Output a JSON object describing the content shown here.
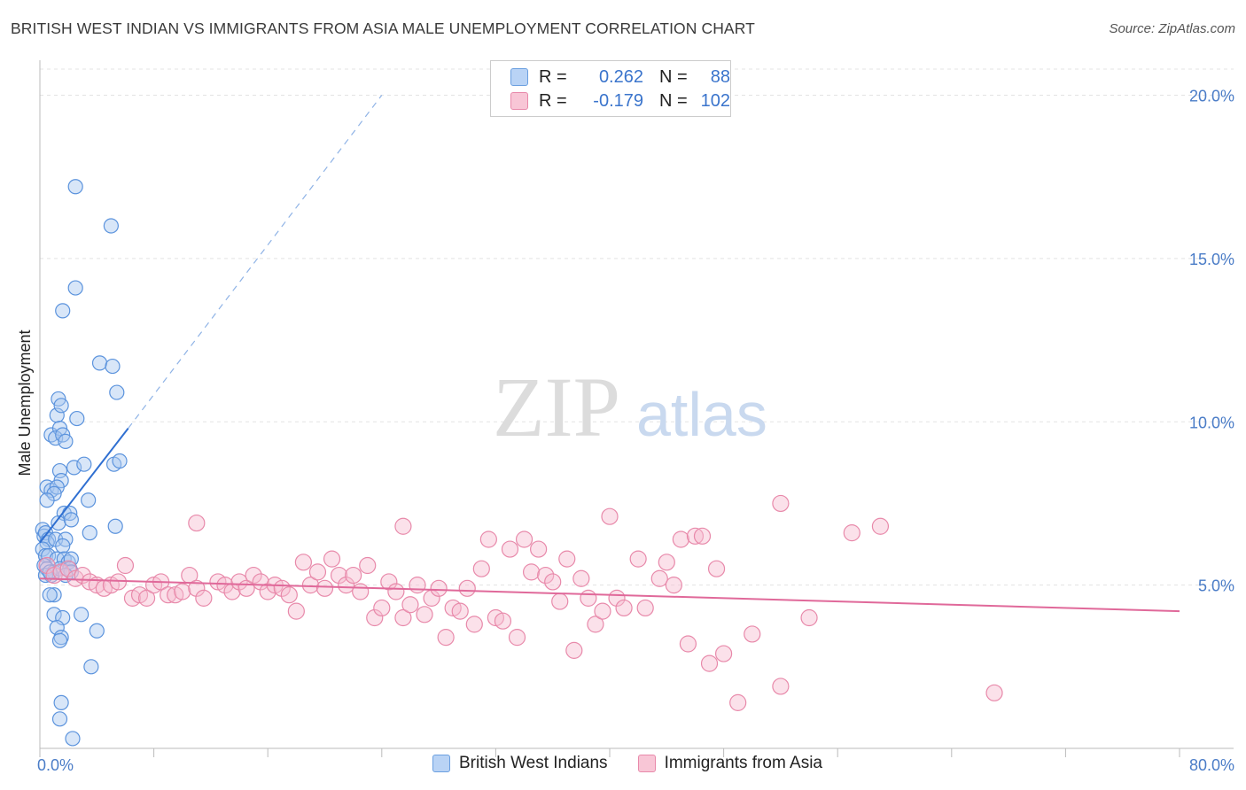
{
  "title": "BRITISH WEST INDIAN VS IMMIGRANTS FROM ASIA MALE UNEMPLOYMENT CORRELATION CHART",
  "source": "Source: ZipAtlas.com",
  "watermark": {
    "zip": "ZIP",
    "atlas": "atlas"
  },
  "legend": {
    "r_label": "R =",
    "n_label": "N =",
    "rows": [
      {
        "r": "0.262",
        "n": "88",
        "color": "#6a9fe0",
        "fill": "#b9d3f5"
      },
      {
        "r": "-0.179",
        "n": "102",
        "color": "#e889aa",
        "fill": "#f8c6d6"
      }
    ]
  },
  "chart_data": {
    "type": "scatter",
    "title": "BRITISH WEST INDIAN VS IMMIGRANTS FROM ASIA MALE UNEMPLOYMENT CORRELATION CHART",
    "xlabel": "",
    "ylabel": "Male Unemployment",
    "xlim": [
      0,
      80
    ],
    "ylim": [
      0,
      20.8
    ],
    "x_tick_labels": [
      "0.0%",
      "80.0%"
    ],
    "y_ticks": [
      5,
      10,
      15,
      20
    ],
    "y_tick_labels": [
      "5.0%",
      "10.0%",
      "15.0%",
      "20.0%"
    ],
    "grid": true,
    "series": [
      {
        "name": "British West Indians",
        "color": "#5b93dd",
        "fill": "#a9c8f0",
        "trend": {
          "x0": 0,
          "y0": 6.3,
          "x1": 6.2,
          "y1": 9.8,
          "dash_x1": 24,
          "dash_y1": 20
        },
        "points": [
          [
            2.5,
            17.2
          ],
          [
            5.0,
            16.0
          ],
          [
            2.5,
            14.1
          ],
          [
            1.6,
            13.4
          ],
          [
            4.2,
            11.8
          ],
          [
            5.1,
            11.7
          ],
          [
            5.4,
            10.9
          ],
          [
            1.3,
            10.7
          ],
          [
            1.2,
            10.2
          ],
          [
            1.5,
            10.5
          ],
          [
            2.6,
            10.1
          ],
          [
            0.8,
            9.6
          ],
          [
            1.4,
            9.8
          ],
          [
            1.1,
            9.5
          ],
          [
            1.6,
            9.6
          ],
          [
            1.8,
            9.4
          ],
          [
            2.4,
            8.6
          ],
          [
            3.1,
            8.7
          ],
          [
            5.2,
            8.7
          ],
          [
            5.6,
            8.8
          ],
          [
            1.4,
            8.5
          ],
          [
            1.5,
            8.2
          ],
          [
            0.5,
            8.0
          ],
          [
            0.8,
            7.9
          ],
          [
            1.2,
            8.0
          ],
          [
            1.0,
            7.8
          ],
          [
            0.5,
            7.6
          ],
          [
            3.4,
            7.6
          ],
          [
            1.7,
            7.2
          ],
          [
            2.1,
            7.2
          ],
          [
            1.3,
            6.9
          ],
          [
            2.2,
            7.0
          ],
          [
            0.2,
            6.7
          ],
          [
            0.3,
            6.5
          ],
          [
            0.4,
            6.6
          ],
          [
            0.6,
            6.4
          ],
          [
            0.5,
            6.3
          ],
          [
            1.1,
            6.4
          ],
          [
            1.8,
            6.4
          ],
          [
            1.6,
            6.2
          ],
          [
            3.5,
            6.6
          ],
          [
            5.3,
            6.8
          ],
          [
            0.2,
            6.1
          ],
          [
            0.4,
            5.9
          ],
          [
            0.6,
            5.9
          ],
          [
            1.2,
            5.8
          ],
          [
            1.7,
            5.8
          ],
          [
            2.0,
            5.7
          ],
          [
            2.2,
            5.8
          ],
          [
            0.3,
            5.6
          ],
          [
            0.5,
            5.5
          ],
          [
            0.8,
            5.3
          ],
          [
            1.0,
            5.4
          ],
          [
            1.4,
            5.5
          ],
          [
            2.1,
            5.5
          ],
          [
            2.2,
            5.4
          ],
          [
            0.4,
            5.3
          ],
          [
            0.7,
            5.4
          ],
          [
            1.8,
            5.3
          ],
          [
            1.0,
            4.7
          ],
          [
            0.7,
            4.7
          ],
          [
            1.0,
            4.1
          ],
          [
            1.6,
            4.0
          ],
          [
            2.9,
            4.1
          ],
          [
            1.2,
            3.7
          ],
          [
            4.0,
            3.6
          ],
          [
            1.5,
            3.4
          ],
          [
            1.4,
            3.3
          ],
          [
            3.6,
            2.5
          ],
          [
            1.5,
            1.4
          ],
          [
            1.4,
            0.9
          ],
          [
            2.3,
            0.3
          ]
        ]
      },
      {
        "name": "Immigrants from Asia",
        "color": "#e889aa",
        "fill": "#f6bcd0",
        "trend": {
          "x0": 0,
          "y0": 5.2,
          "x1": 80,
          "y1": 4.2
        },
        "points": [
          [
            0.5,
            5.6
          ],
          [
            1.0,
            5.3
          ],
          [
            1.5,
            5.4
          ],
          [
            2.0,
            5.5
          ],
          [
            2.5,
            5.2
          ],
          [
            3.0,
            5.3
          ],
          [
            3.5,
            5.1
          ],
          [
            4.0,
            5.0
          ],
          [
            4.5,
            4.9
          ],
          [
            5.0,
            5.0
          ],
          [
            5.5,
            5.1
          ],
          [
            6.0,
            5.6
          ],
          [
            6.5,
            4.6
          ],
          [
            7.0,
            4.7
          ],
          [
            7.5,
            4.6
          ],
          [
            8.0,
            5.0
          ],
          [
            8.5,
            5.1
          ],
          [
            9.0,
            4.7
          ],
          [
            9.5,
            4.7
          ],
          [
            10.0,
            4.8
          ],
          [
            10.5,
            5.3
          ],
          [
            11.0,
            4.9
          ],
          [
            11.5,
            4.6
          ],
          [
            12.5,
            5.1
          ],
          [
            13.0,
            5.0
          ],
          [
            13.5,
            4.8
          ],
          [
            14.0,
            5.1
          ],
          [
            14.5,
            4.9
          ],
          [
            15.0,
            5.3
          ],
          [
            15.5,
            5.1
          ],
          [
            16.0,
            4.8
          ],
          [
            16.5,
            5.0
          ],
          [
            17.0,
            4.9
          ],
          [
            17.5,
            4.7
          ],
          [
            18.0,
            4.2
          ],
          [
            18.5,
            5.7
          ],
          [
            19.0,
            5.0
          ],
          [
            19.5,
            5.4
          ],
          [
            20.0,
            4.9
          ],
          [
            20.5,
            5.8
          ],
          [
            21.0,
            5.3
          ],
          [
            21.5,
            5.0
          ],
          [
            22.0,
            5.3
          ],
          [
            22.5,
            4.8
          ],
          [
            23.0,
            5.6
          ],
          [
            23.5,
            4.0
          ],
          [
            24.0,
            4.3
          ],
          [
            24.5,
            5.1
          ],
          [
            25.0,
            4.8
          ],
          [
            25.5,
            4.0
          ],
          [
            26.0,
            4.4
          ],
          [
            26.5,
            5.0
          ],
          [
            27.0,
            4.1
          ],
          [
            27.5,
            4.6
          ],
          [
            28.0,
            4.9
          ],
          [
            28.5,
            3.4
          ],
          [
            29.0,
            4.3
          ],
          [
            29.5,
            4.2
          ],
          [
            30.0,
            4.9
          ],
          [
            30.5,
            3.8
          ],
          [
            31.0,
            5.5
          ],
          [
            31.5,
            6.4
          ],
          [
            32.0,
            4.0
          ],
          [
            32.5,
            3.9
          ],
          [
            33.0,
            6.1
          ],
          [
            33.5,
            3.4
          ],
          [
            34.0,
            6.4
          ],
          [
            34.5,
            5.4
          ],
          [
            35.0,
            6.1
          ],
          [
            35.5,
            5.3
          ],
          [
            36.0,
            5.1
          ],
          [
            36.5,
            4.5
          ],
          [
            37.0,
            5.8
          ],
          [
            37.5,
            3.0
          ],
          [
            38.0,
            5.2
          ],
          [
            38.5,
            4.6
          ],
          [
            39.0,
            3.8
          ],
          [
            39.5,
            4.2
          ],
          [
            40.0,
            7.1
          ],
          [
            40.5,
            4.6
          ],
          [
            41.0,
            4.3
          ],
          [
            42.0,
            5.8
          ],
          [
            42.5,
            4.3
          ],
          [
            43.5,
            5.2
          ],
          [
            44.0,
            5.7
          ],
          [
            44.5,
            5.0
          ],
          [
            45.0,
            6.4
          ],
          [
            45.5,
            3.2
          ],
          [
            46.0,
            6.5
          ],
          [
            46.5,
            6.5
          ],
          [
            47.0,
            2.6
          ],
          [
            47.5,
            5.5
          ],
          [
            48.0,
            2.9
          ],
          [
            49.0,
            1.4
          ],
          [
            50.0,
            3.5
          ],
          [
            52.0,
            7.5
          ],
          [
            52.0,
            1.9
          ],
          [
            54.0,
            4.0
          ],
          [
            57.0,
            6.6
          ],
          [
            59.0,
            6.8
          ],
          [
            67.0,
            1.7
          ],
          [
            11.0,
            6.9
          ],
          [
            25.5,
            6.8
          ]
        ]
      }
    ]
  },
  "bottom_legend": [
    "British West Indians",
    "Immigrants from Asia"
  ]
}
